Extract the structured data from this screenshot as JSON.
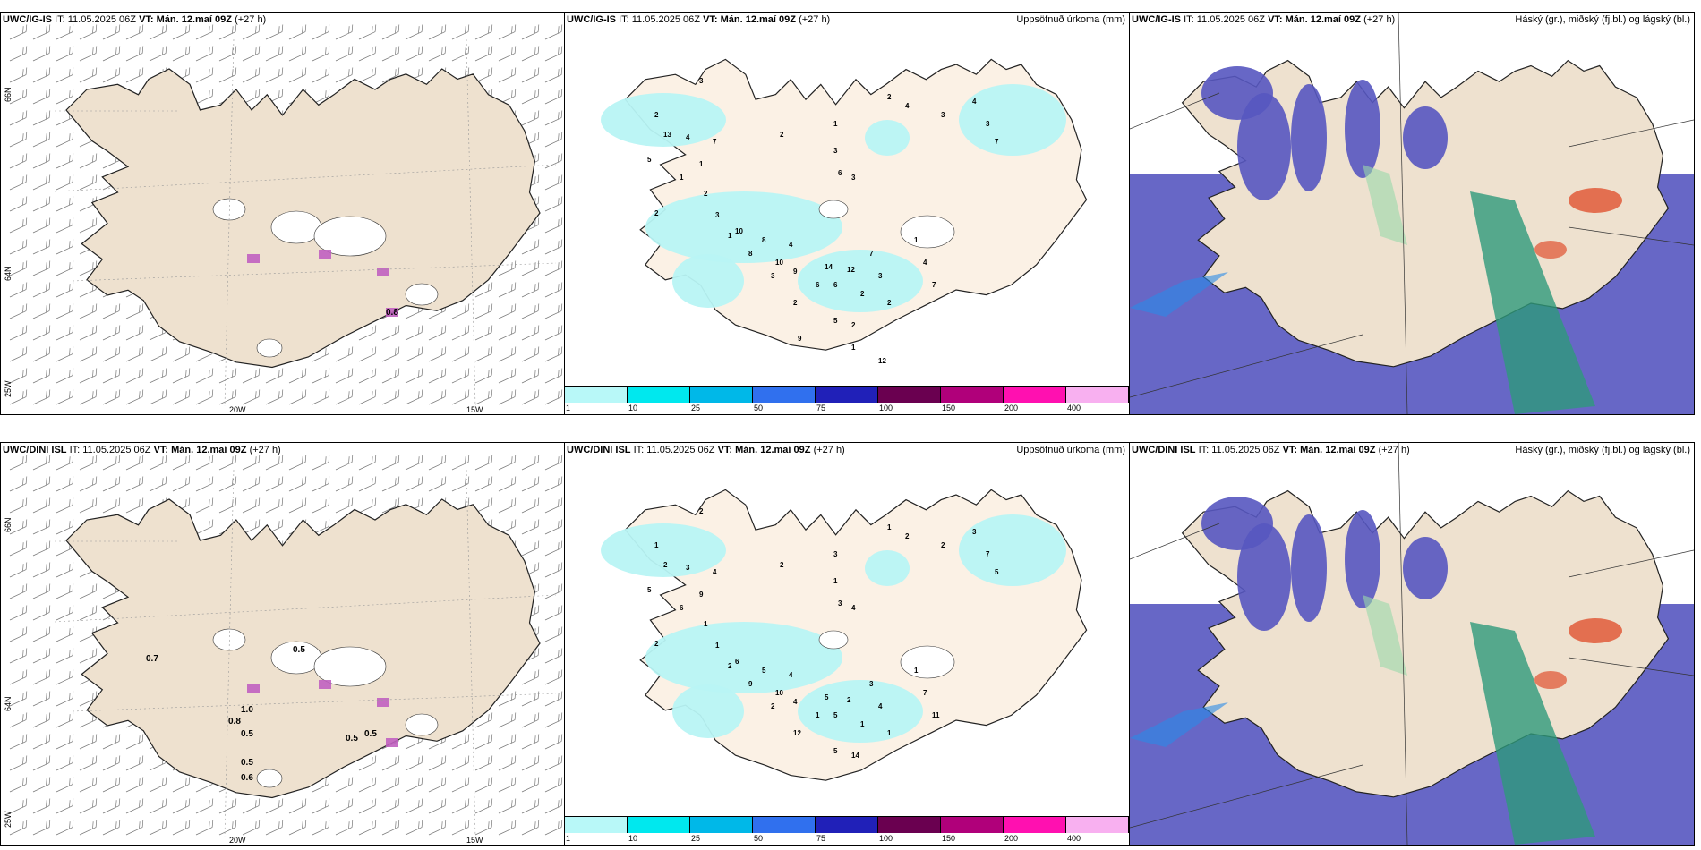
{
  "rows": [
    {
      "model": "UWC/IG-IS",
      "it_label": "IT:",
      "it_value": "11.05.2025 06Z",
      "vt_label": "VT:",
      "vt_value": "Mán. 12.maí 09Z",
      "lead": "(+27 h)"
    },
    {
      "model": "UWC/DINI ISL",
      "it_label": "IT:",
      "it_value": "11.05.2025 06Z",
      "vt_label": "VT:",
      "vt_value": "Mán. 12.maí 09Z",
      "lead": "(+27 h)"
    }
  ],
  "precip_title": "Uppsöfnuð úrkoma (mm)",
  "cloud_title": "Háský (gr.), miðský (fj.bl.) og lágský (bl.)",
  "lon_labels": [
    "20W",
    "15W"
  ],
  "lat_labels": [
    "66N",
    "64N",
    "25W"
  ],
  "colorbar": {
    "levels": [
      "1",
      "10",
      "25",
      "50",
      "75",
      "100",
      "150",
      "200",
      "400"
    ],
    "colors": [
      "#b8f8f8",
      "#00e8ee",
      "#00b8e8",
      "#3070ee",
      "#2020b8",
      "#6a0050",
      "#b0007a",
      "#ff10b0",
      "#f8b0f0"
    ]
  },
  "colors": {
    "land": "#eee1cf",
    "land_light": "#fbf1e5",
    "precip_light": "#b8f4f4",
    "cloud_low": "#5656c0",
    "cloud_mid": "#2e9a7a",
    "cloud_high": "#9ad8aa",
    "cloud_warm": "#e05a3a",
    "cloud_blue": "#2a8ae8"
  },
  "top_precip_numbers": [
    "3",
    "2",
    "13",
    "4",
    "5",
    "7",
    "1",
    "1",
    "2",
    "2",
    "3",
    "1",
    "2",
    "1",
    "3",
    "3",
    "2",
    "4",
    "3",
    "4",
    "3",
    "7",
    "6",
    "10",
    "8",
    "4",
    "8",
    "10",
    "9",
    "14",
    "12",
    "7",
    "3",
    "6",
    "2",
    "2",
    "1",
    "4",
    "7",
    "2",
    "5",
    "2",
    "3",
    "6",
    "9",
    "1",
    "12"
  ],
  "bottom_precip_numbers": [
    "2",
    "1",
    "2",
    "3",
    "5",
    "4",
    "9",
    "6",
    "1",
    "2",
    "1",
    "2",
    "2",
    "3",
    "1",
    "4",
    "1",
    "2",
    "2",
    "3",
    "7",
    "5",
    "3",
    "6",
    "5",
    "4",
    "9",
    "10",
    "4",
    "5",
    "2",
    "3",
    "4",
    "5",
    "1",
    "1",
    "1",
    "7",
    "11",
    "12",
    "5",
    "14",
    "2",
    "1"
  ],
  "top_wind_values": [
    "0.8"
  ],
  "bottom_wind_values": [
    "0.7",
    "0.8",
    "1.0",
    "0.5",
    "0.5",
    "0.5",
    "0.5",
    "0.6",
    "0.5"
  ]
}
